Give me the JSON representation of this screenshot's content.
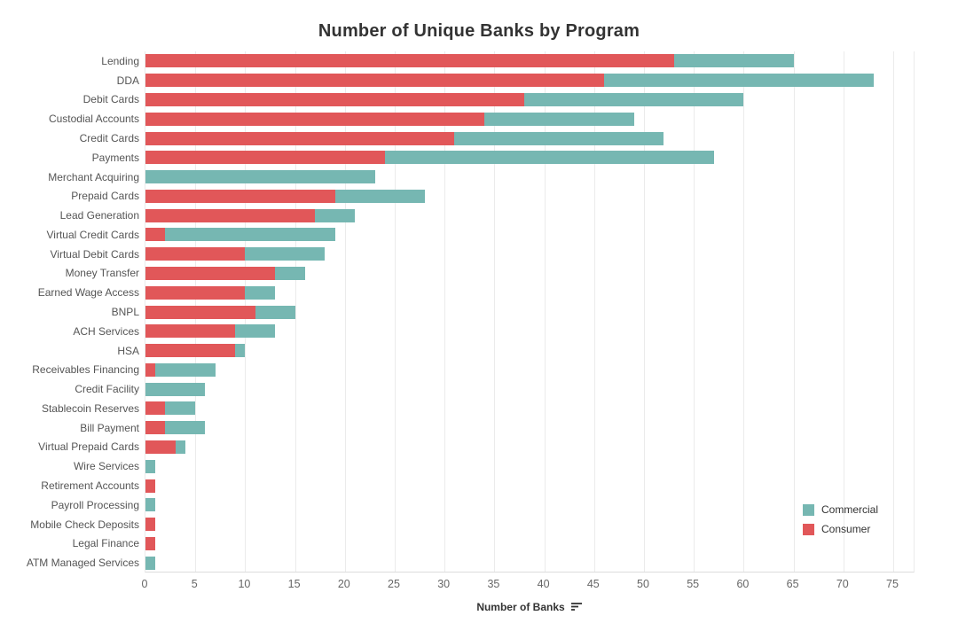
{
  "title": "Number of Unique Banks by Program",
  "colors": {
    "commercial": "#76b7b2",
    "consumer": "#e15759",
    "gridline": "#ebebeb",
    "title_text": "#333333",
    "label_text": "#555555",
    "tick_text": "#666666"
  },
  "axis": {
    "xlabel": "Number of Banks",
    "ticks": [
      0,
      5,
      10,
      15,
      20,
      25,
      30,
      35,
      40,
      45,
      50,
      55,
      60,
      65,
      70,
      75
    ],
    "sort_icon": "sort-descending-icon"
  },
  "legend": {
    "items": [
      {
        "label": "Commercial",
        "color": "#76b7b2"
      },
      {
        "label": "Consumer",
        "color": "#e15759"
      }
    ]
  },
  "chart_data": {
    "type": "bar",
    "orientation": "horizontal",
    "stacked": true,
    "title": "Number of Unique Banks by Program",
    "xlabel": "Number of Banks",
    "ylabel": "",
    "xlim": [
      0,
      77
    ],
    "grid": true,
    "legend_position": "bottom-right",
    "categories": [
      "Lending",
      "DDA",
      "Debit Cards",
      "Custodial Accounts",
      "Credit Cards",
      "Payments",
      "Merchant Acquiring",
      "Prepaid Cards",
      "Lead Generation",
      "Virtual Credit Cards",
      "Virtual Debit Cards",
      "Money Transfer",
      "Earned Wage Access",
      "BNPL",
      "ACH Services",
      "HSA",
      "Receivables Financing",
      "Credit Facility",
      "Stablecoin Reserves",
      "Bill Payment",
      "Virtual Prepaid Cards",
      "Wire Services",
      "Retirement Accounts",
      "Payroll Processing",
      "Mobile Check Deposits",
      "Legal Finance",
      "ATM Managed Services"
    ],
    "series": [
      {
        "name": "Consumer",
        "color": "#e15759",
        "values": [
          53,
          46,
          38,
          34,
          31,
          24,
          0,
          19,
          17,
          2,
          10,
          13,
          10,
          11,
          9,
          9,
          1,
          0,
          2,
          2,
          3,
          0,
          1,
          0,
          1,
          1,
          0
        ]
      },
      {
        "name": "Commercial",
        "color": "#76b7b2",
        "values": [
          12,
          27,
          22,
          15,
          21,
          33,
          23,
          9,
          4,
          17,
          8,
          3,
          3,
          4,
          4,
          1,
          6,
          6,
          3,
          4,
          1,
          1,
          0,
          1,
          0,
          0,
          1
        ]
      }
    ],
    "totals": [
      65,
      73,
      60,
      49,
      52,
      57,
      23,
      28,
      21,
      19,
      18,
      16,
      13,
      15,
      13,
      10,
      7,
      6,
      5,
      6,
      4,
      1,
      1,
      1,
      1,
      1,
      1
    ]
  }
}
